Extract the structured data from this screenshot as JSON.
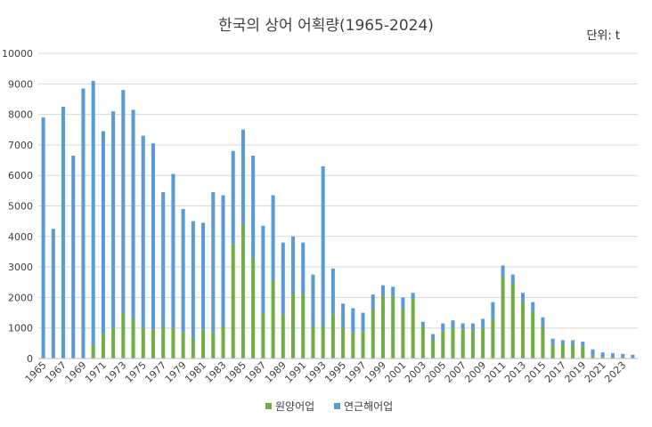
{
  "chart_data": {
    "type": "bar",
    "stacked": true,
    "title": "한국의 상어 어획량(1965-2024)",
    "unit_label": "단위: t",
    "xlabel": "",
    "ylabel": "",
    "ylim": [
      0,
      10000
    ],
    "yticks": [
      0,
      1000,
      2000,
      3000,
      4000,
      5000,
      6000,
      7000,
      8000,
      9000,
      10000
    ],
    "grid": true,
    "legend_position": "bottom",
    "x": [
      1965,
      1966,
      1967,
      1968,
      1969,
      1970,
      1971,
      1972,
      1973,
      1974,
      1975,
      1976,
      1977,
      1978,
      1979,
      1980,
      1981,
      1982,
      1983,
      1984,
      1985,
      1986,
      1987,
      1988,
      1989,
      1990,
      1991,
      1992,
      1993,
      1994,
      1995,
      1996,
      1997,
      1998,
      1999,
      2000,
      2001,
      2002,
      2003,
      2004,
      2005,
      2006,
      2007,
      2008,
      2009,
      2010,
      2011,
      2012,
      2013,
      2014,
      2015,
      2016,
      2017,
      2018,
      2019,
      2020,
      2021,
      2022,
      2023,
      2024
    ],
    "x_tick_labels": [
      "1965",
      "1967",
      "1969",
      "1971",
      "1973",
      "1975",
      "1977",
      "1979",
      "1981",
      "1983",
      "1985",
      "1987",
      "1989",
      "1991",
      "1993",
      "1995",
      "1997",
      "1999",
      "2001",
      "2003",
      "2005",
      "2007",
      "2009",
      "2011",
      "2013",
      "2015",
      "2017",
      "2019",
      "2021",
      "2023"
    ],
    "series": [
      {
        "name": "원양어업",
        "color": "#70ad47",
        "values": [
          0,
          0,
          0,
          0,
          0,
          450,
          800,
          1000,
          1500,
          1300,
          1000,
          950,
          1050,
          1000,
          850,
          650,
          950,
          850,
          1050,
          3750,
          4400,
          3300,
          1500,
          2550,
          1450,
          2100,
          2100,
          1050,
          1050,
          1450,
          1000,
          850,
          900,
          1600,
          2050,
          2050,
          1650,
          1950,
          1050,
          600,
          900,
          1000,
          950,
          900,
          1000,
          1300,
          2700,
          2450,
          1850,
          1550,
          1050,
          450,
          450,
          450,
          400,
          100,
          50,
          50,
          30,
          20
        ]
      },
      {
        "name": "연근해어업",
        "color": "#5b9bd5",
        "values": [
          7900,
          4250,
          8250,
          6650,
          8850,
          8650,
          6650,
          7100,
          7300,
          6850,
          6300,
          6100,
          4400,
          5050,
          4050,
          3850,
          3500,
          4600,
          4300,
          3050,
          3100,
          3350,
          2850,
          2800,
          2350,
          1900,
          1700,
          1700,
          5250,
          1500,
          800,
          800,
          600,
          500,
          350,
          300,
          350,
          200,
          150,
          200,
          250,
          250,
          200,
          250,
          300,
          550,
          350,
          300,
          300,
          300,
          300,
          200,
          150,
          150,
          150,
          200,
          150,
          120,
          120,
          100
        ]
      }
    ]
  }
}
